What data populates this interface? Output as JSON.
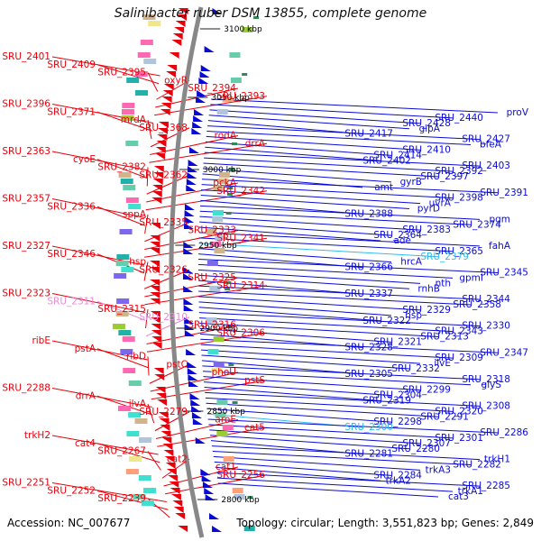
{
  "title": "Salinibacter ruber DSM 13855, complete genome",
  "footer": {
    "accession": "Accession: NC_007677",
    "topology": "Topology: circular; Length: 3,551,823 bp; Genes: 2,849"
  },
  "colors": {
    "reverse_strand": "#e8000b",
    "forward_strand": "#0a0ad6",
    "highlight_pink": "#e88ad6",
    "highlight_cyan": "#33bbee",
    "backbone": "#888888",
    "tick": "#2e8b57"
  },
  "kbp_ticks": [
    "3100 kbp",
    "3050 kbp",
    "3000 kbp",
    "2950 kbp",
    "2900 kbp",
    "2850 kbp",
    "2800 kbp"
  ],
  "left_labels": [
    {
      "text": "SRU_2401",
      "color": "red"
    },
    {
      "text": "SRU_2409",
      "color": "red"
    },
    {
      "text": "SRU_2395",
      "color": "red"
    },
    {
      "text": "oxyR",
      "color": "red"
    },
    {
      "text": "SRU_2394",
      "color": "red"
    },
    {
      "text": "SRU_2393",
      "color": "red"
    },
    {
      "text": "SRU_2396",
      "color": "red"
    },
    {
      "text": "SRU_2371",
      "color": "red"
    },
    {
      "text": "mrdA",
      "color": "red"
    },
    {
      "text": "SRU_2368",
      "color": "red"
    },
    {
      "text": "rodA",
      "color": "red"
    },
    {
      "text": "drrA",
      "color": "red"
    },
    {
      "text": "SRU_2363",
      "color": "red"
    },
    {
      "text": "cyoE",
      "color": "red"
    },
    {
      "text": "SRU_2382",
      "color": "red"
    },
    {
      "text": "SRU_2362",
      "color": "red"
    },
    {
      "text": "pckA",
      "color": "red"
    },
    {
      "text": "SRU_2342",
      "color": "red"
    },
    {
      "text": "SRU_2357",
      "color": "red"
    },
    {
      "text": "SRU_2336",
      "color": "red"
    },
    {
      "text": "sppA",
      "color": "red"
    },
    {
      "text": "SRU_2335",
      "color": "red"
    },
    {
      "text": "SRU_2333",
      "color": "red"
    },
    {
      "text": "SRU_2341",
      "color": "red"
    },
    {
      "text": "SRU_2327",
      "color": "red"
    },
    {
      "text": "SRU_2346",
      "color": "red"
    },
    {
      "text": "hsp",
      "color": "red"
    },
    {
      "text": "SRU_2326",
      "color": "red"
    },
    {
      "text": "SRU_2325",
      "color": "red"
    },
    {
      "text": "SRU_2314",
      "color": "red"
    },
    {
      "text": "SRU_2323",
      "color": "red"
    },
    {
      "text": "SRU_2311",
      "color": "pink"
    },
    {
      "text": "SRU_2315",
      "color": "red"
    },
    {
      "text": "SRU_2310",
      "color": "pink"
    },
    {
      "text": "SRU_2316",
      "color": "red"
    },
    {
      "text": "SRU_2306",
      "color": "red"
    },
    {
      "text": "ribE",
      "color": "red"
    },
    {
      "text": "pstA",
      "color": "red"
    },
    {
      "text": "ribD",
      "color": "red"
    },
    {
      "text": "pstC",
      "color": "red"
    },
    {
      "text": "phoU",
      "color": "red"
    },
    {
      "text": "pstS",
      "color": "red"
    },
    {
      "text": "SRU_2288",
      "color": "red"
    },
    {
      "text": "drrA",
      "color": "red"
    },
    {
      "text": "ilvA",
      "color": "red"
    },
    {
      "text": "SRU_2279",
      "color": "red"
    },
    {
      "text": "aroE",
      "color": "red"
    },
    {
      "text": "cat5",
      "color": "red"
    },
    {
      "text": "trkH2",
      "color": "red"
    },
    {
      "text": "cat4",
      "color": "red"
    },
    {
      "text": "SRU_2267",
      "color": "red"
    },
    {
      "text": "cat2",
      "color": "red"
    },
    {
      "text": "cat1",
      "color": "red"
    },
    {
      "text": "SRU_2256",
      "color": "red"
    },
    {
      "text": "SRU_2251",
      "color": "red"
    },
    {
      "text": "SRU_2252",
      "color": "red"
    },
    {
      "text": "SRU_2239",
      "color": "red"
    }
  ],
  "right_labels": [
    {
      "text": "proV",
      "color": "blue"
    },
    {
      "text": "SRU_2440",
      "color": "blue"
    },
    {
      "text": "SRU_2428",
      "color": "blue"
    },
    {
      "text": "glpA",
      "color": "blue"
    },
    {
      "text": "SRU_2417",
      "color": "blue"
    },
    {
      "text": "SRU_2427",
      "color": "blue"
    },
    {
      "text": "bfeA",
      "color": "blue"
    },
    {
      "text": "SRU_2410",
      "color": "blue"
    },
    {
      "text": "SRU_2414",
      "color": "blue"
    },
    {
      "text": "SRU_2402",
      "color": "blue"
    },
    {
      "text": "SRU_2403",
      "color": "blue"
    },
    {
      "text": "SRU_2392",
      "color": "blue"
    },
    {
      "text": "SRU_2397",
      "color": "blue"
    },
    {
      "text": "gyrB",
      "color": "blue"
    },
    {
      "text": "amt",
      "color": "blue"
    },
    {
      "text": "SRU_2391",
      "color": "blue"
    },
    {
      "text": "SRU_2398",
      "color": "blue"
    },
    {
      "text": "uvrA",
      "color": "blue"
    },
    {
      "text": "pyrD",
      "color": "blue"
    },
    {
      "text": "SRU_2388",
      "color": "blue"
    },
    {
      "text": "pgm",
      "color": "blue"
    },
    {
      "text": "SRU_2374",
      "color": "blue"
    },
    {
      "text": "SRU_2383",
      "color": "blue"
    },
    {
      "text": "SRU_2364",
      "color": "blue"
    },
    {
      "text": "ade",
      "color": "blue"
    },
    {
      "text": "fahA",
      "color": "blue"
    },
    {
      "text": "SRU_2365",
      "color": "blue"
    },
    {
      "text": "SRU_2379",
      "color": "cyan"
    },
    {
      "text": "hrcA",
      "color": "blue"
    },
    {
      "text": "SRU_2366",
      "color": "blue"
    },
    {
      "text": "SRU_2345",
      "color": "blue"
    },
    {
      "text": "gpmI",
      "color": "blue"
    },
    {
      "text": "nth",
      "color": "blue"
    },
    {
      "text": "rnhB",
      "color": "blue"
    },
    {
      "text": "SRU_2337",
      "color": "blue"
    },
    {
      "text": "SRU_2344",
      "color": "blue"
    },
    {
      "text": "SRU_2358",
      "color": "blue"
    },
    {
      "text": "SRU_2329",
      "color": "blue"
    },
    {
      "text": "hsp",
      "color": "blue"
    },
    {
      "text": "SRU_2322",
      "color": "blue"
    },
    {
      "text": "SRU_2330",
      "color": "blue"
    },
    {
      "text": "SRU_2343",
      "color": "blue"
    },
    {
      "text": "SRU_2313",
      "color": "blue"
    },
    {
      "text": "SRU_2321",
      "color": "blue"
    },
    {
      "text": "SRU_2328",
      "color": "blue"
    },
    {
      "text": "SRU_2347",
      "color": "blue"
    },
    {
      "text": "SRU_2309",
      "color": "blue"
    },
    {
      "text": "ilvE",
      "color": "blue"
    },
    {
      "text": "SRU_2332",
      "color": "blue"
    },
    {
      "text": "SRU_2305",
      "color": "blue"
    },
    {
      "text": "SRU_2318",
      "color": "blue"
    },
    {
      "text": "glyS",
      "color": "blue"
    },
    {
      "text": "SRU_2299",
      "color": "blue"
    },
    {
      "text": "SRU_2304",
      "color": "blue"
    },
    {
      "text": "SRU_2319",
      "color": "blue"
    },
    {
      "text": "SRU_2308",
      "color": "blue"
    },
    {
      "text": "SRU_2320",
      "color": "blue"
    },
    {
      "text": "SRU_2291",
      "color": "blue"
    },
    {
      "text": "SRU_2298",
      "color": "blue"
    },
    {
      "text": "SRU_2300",
      "color": "cyan"
    },
    {
      "text": "SRU_2286",
      "color": "blue"
    },
    {
      "text": "SRU_2301",
      "color": "blue"
    },
    {
      "text": "SRU_2307",
      "color": "blue"
    },
    {
      "text": "SRU_2280",
      "color": "blue"
    },
    {
      "text": "SRU_2281",
      "color": "blue"
    },
    {
      "text": "trkH1",
      "color": "blue"
    },
    {
      "text": "SRU_2282",
      "color": "blue"
    },
    {
      "text": "trkA3",
      "color": "blue"
    },
    {
      "text": "SRU_2284",
      "color": "blue"
    },
    {
      "text": "trkA2",
      "color": "blue"
    },
    {
      "text": "SRU_2285",
      "color": "blue"
    },
    {
      "text": "trkA1",
      "color": "blue"
    },
    {
      "text": "cat3",
      "color": "blue"
    }
  ]
}
